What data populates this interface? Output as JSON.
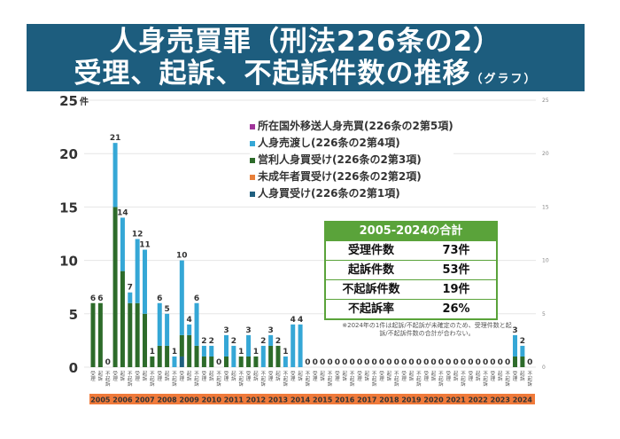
{
  "title": {
    "line1": "人身売買罪（刑法226条の2）",
    "line2": "受理、起訴、不起訴件数の推移",
    "line2_suffix": "（グラフ）"
  },
  "legend": [
    {
      "label": "所在国外移送人身売買(226条の2第5項)",
      "color": "#a0349a"
    },
    {
      "label": "人身売渡し(226条の2第4項)",
      "color": "#35a7d6"
    },
    {
      "label": "営利人身買受け(226条の2第3項)",
      "color": "#2d6b2a"
    },
    {
      "label": "未成年者買受け(226条の2第2項)",
      "color": "#e8803a"
    },
    {
      "label": "人身買受け(226条の2第1項)",
      "color": "#1f5f7f"
    }
  ],
  "summary": {
    "header": "2005-2024の合計",
    "rows": [
      {
        "label": "受理件数",
        "value": "73件"
      },
      {
        "label": "起訴件数",
        "value": "53件"
      },
      {
        "label": "不起訴件数",
        "value": "19件"
      },
      {
        "label": "不起訴率",
        "value": "26%"
      }
    ],
    "note": "※2024年の1件は起訴/不起訴が未確定のため、受理件数と起訴/不起訴件数の合計が合わない。"
  },
  "chart_data": {
    "type": "bar",
    "stacked": true,
    "ylim": [
      0,
      25
    ],
    "yticks": [
      "0",
      "5",
      "10",
      "15",
      "20",
      "25"
    ],
    "ylabel_unit": "件",
    "grid": true,
    "legend_placement": "top-right",
    "years": [
      "2005",
      "2006",
      "2007",
      "2008",
      "2009",
      "2010",
      "2011",
      "2012",
      "2013",
      "2014",
      "2015",
      "2016",
      "2017",
      "2018",
      "2019",
      "2020",
      "2021",
      "2022",
      "2023",
      "2024"
    ],
    "bar_types": [
      "受理",
      "起訴",
      "不起訴"
    ],
    "series": [
      {
        "name": "人身買受け(226条の2第1項)",
        "color": "#1f5f7f",
        "values": [
          0,
          0,
          0,
          0,
          0,
          0,
          0,
          0,
          0,
          0,
          0,
          0,
          1,
          0,
          0,
          0,
          0,
          0,
          0,
          0,
          0,
          0,
          0,
          0,
          0,
          0,
          0,
          0,
          0,
          0,
          0,
          0,
          0,
          0,
          0,
          0,
          0,
          0,
          0,
          0,
          0,
          0,
          0,
          0,
          0,
          0,
          0,
          0,
          0,
          0,
          0,
          0,
          0,
          0,
          0,
          0,
          0,
          0,
          0,
          0
        ]
      },
      {
        "name": "未成年者買受け(226条の2第2項)",
        "color": "#e8803a",
        "values": [
          0,
          0,
          0,
          0,
          0,
          0,
          0,
          0,
          0,
          0,
          0,
          0,
          0,
          0,
          0,
          0,
          0,
          0,
          0,
          0,
          0,
          0,
          0,
          0,
          0,
          0,
          0,
          0,
          0,
          0,
          0,
          0,
          0,
          0,
          0,
          0,
          0,
          0,
          0,
          0,
          0,
          0,
          0,
          0,
          0,
          0,
          0,
          0,
          0,
          0,
          0,
          0,
          0,
          0,
          0,
          0,
          0,
          0,
          0,
          0
        ]
      },
      {
        "name": "営利人身買受け(226条の2第3項)",
        "color": "#2d6b2a",
        "values": [
          6,
          6,
          0,
          15,
          9,
          6,
          6,
          5,
          1,
          2,
          2,
          0,
          2,
          3,
          2,
          1,
          1,
          0,
          1,
          0,
          1,
          1,
          1,
          0,
          2,
          2,
          0,
          0,
          0,
          0,
          0,
          0,
          0,
          0,
          0,
          0,
          0,
          0,
          0,
          0,
          0,
          0,
          0,
          0,
          0,
          0,
          0,
          0,
          0,
          0,
          0,
          0,
          0,
          0,
          0,
          0,
          0,
          1,
          1,
          0
        ]
      },
      {
        "name": "人身売渡し(226条の2第4項)",
        "color": "#35a7d6",
        "values": [
          0,
          0,
          0,
          6,
          5,
          1,
          6,
          6,
          0,
          4,
          3,
          1,
          7,
          1,
          4,
          1,
          1,
          0,
          2,
          2,
          0,
          2,
          0,
          2,
          1,
          0,
          1,
          4,
          4,
          0,
          0,
          0,
          0,
          0,
          0,
          0,
          0,
          0,
          0,
          0,
          0,
          0,
          0,
          0,
          0,
          0,
          0,
          0,
          0,
          0,
          0,
          0,
          0,
          0,
          0,
          0,
          0,
          2,
          1,
          0
        ]
      },
      {
        "name": "所在国外移送人身売買(226条の2第5項)",
        "color": "#a0349a",
        "values": [
          0,
          0,
          0,
          0,
          0,
          0,
          0,
          0,
          0,
          0,
          0,
          0,
          0,
          0,
          0,
          0,
          0,
          0,
          0,
          0,
          0,
          0,
          0,
          0,
          0,
          0,
          0,
          0,
          0,
          0,
          0,
          0,
          0,
          0,
          0,
          0,
          0,
          0,
          0,
          0,
          0,
          0,
          0,
          0,
          0,
          0,
          0,
          0,
          0,
          0,
          0,
          0,
          0,
          0,
          0,
          0,
          0,
          0,
          0,
          0
        ]
      }
    ],
    "totals": [
      6,
      6,
      0,
      21,
      14,
      7,
      12,
      11,
      1,
      6,
      5,
      1,
      10,
      4,
      6,
      2,
      2,
      0,
      3,
      2,
      1,
      3,
      1,
      2,
      3,
      2,
      1,
      4,
      4,
      0,
      0,
      0,
      0,
      0,
      0,
      0,
      0,
      0,
      0,
      0,
      0,
      0,
      0,
      0,
      0,
      0,
      0,
      0,
      0,
      0,
      0,
      0,
      0,
      0,
      0,
      0,
      0,
      3,
      2,
      0
    ],
    "year_band_color": "#f07a3a"
  }
}
